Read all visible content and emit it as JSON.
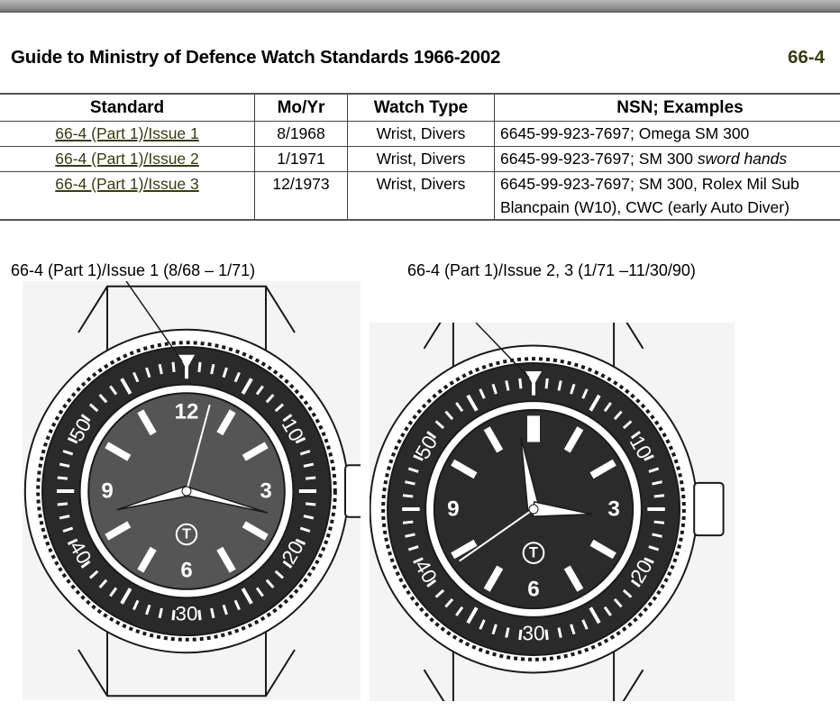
{
  "header": {
    "title": "Guide to Ministry of Defence Watch Standards 1966-2002",
    "doc_id": "66-4"
  },
  "table": {
    "columns": [
      "Standard",
      "Mo/Yr",
      "Watch Type",
      "NSN; Examples"
    ],
    "rows": [
      {
        "standard": "66-4 (Part 1)/Issue 1",
        "mo_yr": "8/1968",
        "type": "Wrist, Divers",
        "nsn": "6645-99-923-7697; Omega SM 300",
        "nsn_italic": "",
        "nsn_line2": ""
      },
      {
        "standard": "66-4 (Part 1)/Issue 2",
        "mo_yr": "1/1971",
        "type": "Wrist, Divers",
        "nsn": "6645-99-923-7697; SM 300 ",
        "nsn_italic": "sword hands",
        "nsn_line2": ""
      },
      {
        "standard": "66-4 (Part 1)/Issue 3",
        "mo_yr": "12/1973",
        "type": "Wrist, Divers",
        "nsn": "6645-99-923-7697; SM 300, Rolex Mil Sub",
        "nsn_italic": "",
        "nsn_line2": "Blancpain (W10), CWC (early Auto Diver)"
      }
    ]
  },
  "figures": [
    {
      "caption": "66-4 (Part 1)/Issue 1 (8/68 – 1/71)",
      "bezel_numerals": [
        "10",
        "20",
        "30",
        "40",
        "50"
      ],
      "dial_numerals": [
        "12",
        "3",
        "6",
        "9"
      ],
      "logo": "T"
    },
    {
      "caption": "66-4 (Part 1)/Issue 2, 3 (1/71 –11/30/90)",
      "bezel_numerals": [
        "10",
        "20",
        "30",
        "40",
        "50"
      ],
      "dial_numerals": [
        "3",
        "6",
        "9"
      ],
      "logo": "T"
    }
  ],
  "colors": {
    "link": "#3b3b12",
    "ink": "#1a1a1a"
  }
}
